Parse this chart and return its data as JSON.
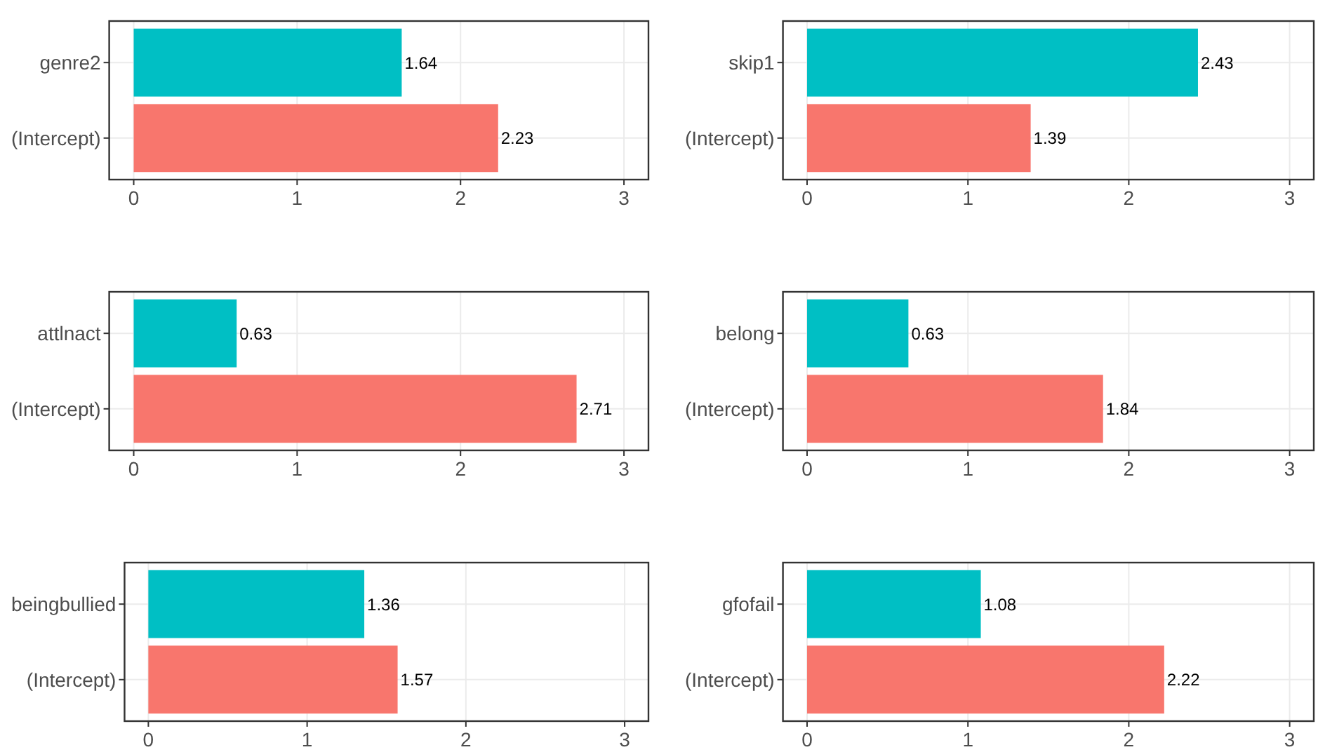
{
  "chart_data": [
    {
      "type": "bar",
      "orientation": "horizontal",
      "categories": [
        "genre2",
        "(Intercept)"
      ],
      "values": [
        1.64,
        2.23
      ],
      "colors": [
        "#00bfc4",
        "#f8766d"
      ],
      "xlim": [
        -0.15,
        3.15
      ],
      "xticks": [
        0,
        1,
        2,
        3
      ],
      "grid": true,
      "data_labels": true
    },
    {
      "type": "bar",
      "orientation": "horizontal",
      "categories": [
        "skip1",
        "(Intercept)"
      ],
      "values": [
        2.43,
        1.39
      ],
      "colors": [
        "#00bfc4",
        "#f8766d"
      ],
      "xlim": [
        -0.15,
        3.15
      ],
      "xticks": [
        0,
        1,
        2,
        3
      ],
      "grid": true,
      "data_labels": true
    },
    {
      "type": "bar",
      "orientation": "horizontal",
      "categories": [
        "attlnact",
        "(Intercept)"
      ],
      "values": [
        0.63,
        2.71
      ],
      "colors": [
        "#00bfc4",
        "#f8766d"
      ],
      "xlim": [
        -0.15,
        3.15
      ],
      "xticks": [
        0,
        1,
        2,
        3
      ],
      "grid": true,
      "data_labels": true
    },
    {
      "type": "bar",
      "orientation": "horizontal",
      "categories": [
        "belong",
        "(Intercept)"
      ],
      "values": [
        0.63,
        1.84
      ],
      "colors": [
        "#00bfc4",
        "#f8766d"
      ],
      "xlim": [
        -0.15,
        3.15
      ],
      "xticks": [
        0,
        1,
        2,
        3
      ],
      "grid": true,
      "data_labels": true
    },
    {
      "type": "bar",
      "orientation": "horizontal",
      "categories": [
        "beingbullied",
        "(Intercept)"
      ],
      "values": [
        1.36,
        1.57
      ],
      "colors": [
        "#00bfc4",
        "#f8766d"
      ],
      "xlim": [
        -0.15,
        3.15
      ],
      "xticks": [
        0,
        1,
        2,
        3
      ],
      "grid": true,
      "data_labels": true
    },
    {
      "type": "bar",
      "orientation": "horizontal",
      "categories": [
        "gfofail",
        "(Intercept)"
      ],
      "values": [
        1.08,
        2.22
      ],
      "colors": [
        "#00bfc4",
        "#f8766d"
      ],
      "xlim": [
        -0.15,
        3.15
      ],
      "xticks": [
        0,
        1,
        2,
        3
      ],
      "grid": true,
      "data_labels": true
    }
  ]
}
